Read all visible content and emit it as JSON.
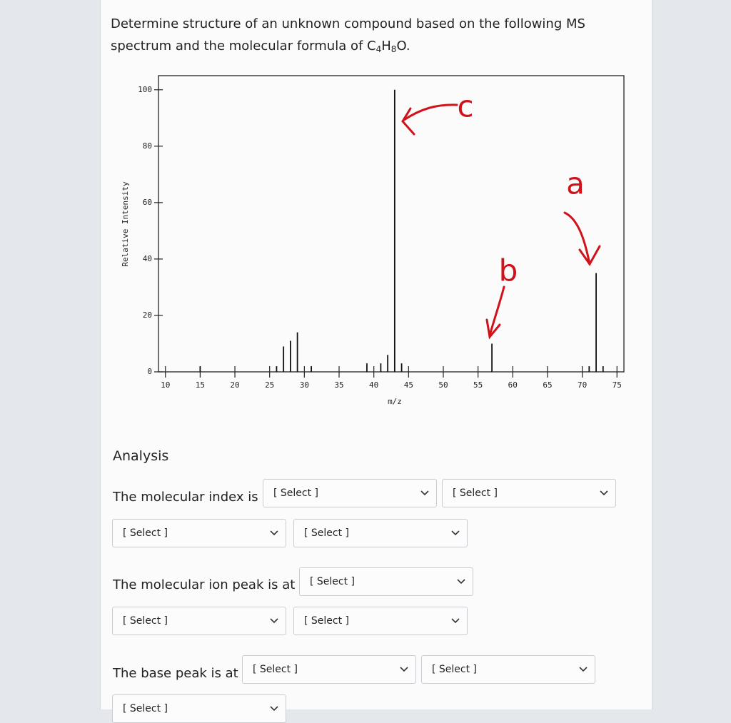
{
  "question": {
    "text": "Determine structure of an unknown compound based on the following MS spectrum and the molecular formula of ",
    "formula": [
      "C",
      "4",
      "H",
      "8",
      "O"
    ],
    "end": "."
  },
  "chart_data": {
    "type": "bar",
    "x": [
      15,
      26,
      27,
      28,
      29,
      31,
      39,
      41,
      42,
      43,
      44,
      57,
      71,
      72,
      73
    ],
    "values": [
      2,
      2,
      9,
      11,
      14,
      2,
      3,
      3,
      6,
      100,
      3,
      10,
      2,
      35,
      2
    ],
    "color": "#111111",
    "xlabel": "m/z",
    "ylabel": "Relative Intensity",
    "xlim": [
      9,
      76
    ],
    "xticks": [
      10,
      15,
      20,
      25,
      30,
      35,
      40,
      45,
      50,
      55,
      60,
      65,
      70,
      75
    ],
    "ylim": [
      0,
      105
    ],
    "yticks": [
      0,
      20,
      40,
      60,
      80,
      100
    ],
    "annotations": [
      {
        "text": "c"
      },
      {
        "text": "a"
      },
      {
        "text": "b"
      }
    ],
    "annotation_color": "#d0121b"
  },
  "analysis": {
    "title": "Analysis",
    "rows": [
      {
        "label": "The molecular index is",
        "selects": [
          "[ Select ]",
          "[ Select ]"
        ]
      },
      {
        "selects": [
          "[ Select ]",
          "[ Select ]"
        ]
      },
      {
        "label": "The molecular ion peak is at",
        "selects": [
          "[ Select ]"
        ]
      },
      {
        "selects": [
          "[ Select ]",
          "[ Select ]"
        ]
      },
      {
        "label": "The base peak is at",
        "selects": [
          "[ Select ]",
          "[ Select ]"
        ]
      },
      {
        "selects": [
          "[ Select ]"
        ]
      }
    ]
  }
}
